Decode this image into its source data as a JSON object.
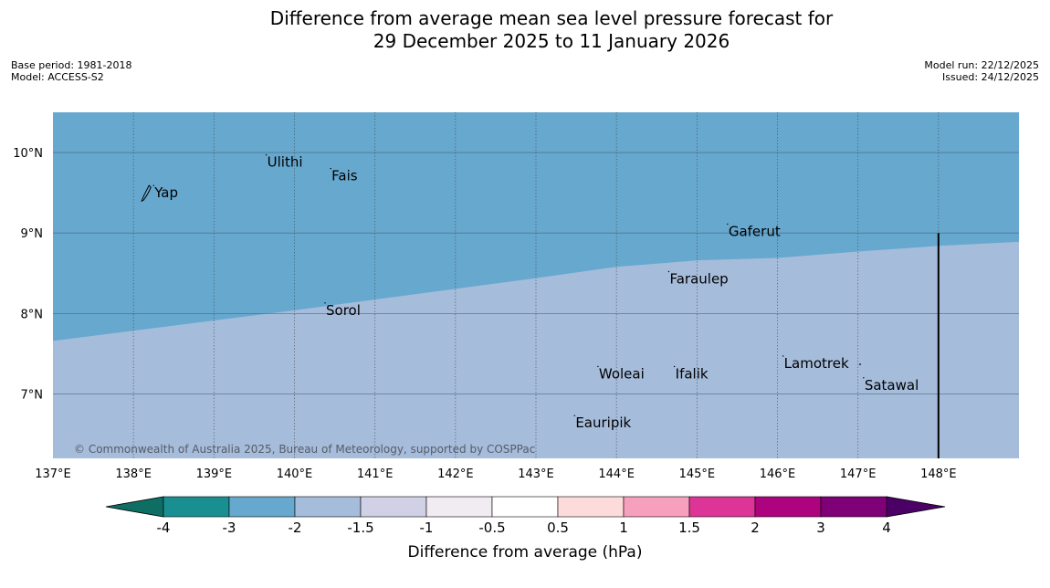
{
  "header": {
    "title_line1": "Difference from average mean sea level pressure forecast for",
    "title_line2": "29 December 2025 to 11 January 2026",
    "base_period": "Base period: 1981-2018",
    "model": "Model: ACCESS-S2",
    "model_run": "Model run: 22/12/2025",
    "issued": "Issued: 24/12/2025"
  },
  "map": {
    "lon_range": [
      137,
      149
    ],
    "lat_range": [
      6.2,
      10.5
    ],
    "lon_ticks": [
      "137°E",
      "138°E",
      "139°E",
      "140°E",
      "141°E",
      "142°E",
      "143°E",
      "144°E",
      "145°E",
      "146°E",
      "147°E",
      "148°E"
    ],
    "lat_ticks": [
      "10°N",
      "9°N",
      "8°N",
      "7°N"
    ],
    "colors": {
      "ocean_minus3_to_minus2": "#67a8cf",
      "ocean_minus2_to_minus1_5": "#a6bcdb",
      "gridline": "#3a3a3a"
    },
    "boundary_line": [
      {
        "lon": 137.0,
        "lat": 7.66
      },
      {
        "lon": 140.0,
        "lat": 8.04
      },
      {
        "lon": 143.0,
        "lat": 8.44
      },
      {
        "lon": 144.0,
        "lat": 8.58
      },
      {
        "lon": 145.0,
        "lat": 8.66
      },
      {
        "lon": 146.0,
        "lat": 8.69
      },
      {
        "lon": 147.0,
        "lat": 8.77
      },
      {
        "lon": 148.0,
        "lat": 8.84
      },
      {
        "lon": 149.0,
        "lat": 8.89
      }
    ],
    "vertical_marker_lon": 148.0,
    "vertical_marker_top_lat": 9.0,
    "places": [
      {
        "name": "Ulithi",
        "lon": 139.65,
        "lat": 9.88
      },
      {
        "name": "Fais",
        "lon": 140.45,
        "lat": 9.71
      },
      {
        "name": "Yap",
        "lon": 138.25,
        "lat": 9.5
      },
      {
        "name": "Gaferut",
        "lon": 145.38,
        "lat": 9.02
      },
      {
        "name": "Faraulep",
        "lon": 144.65,
        "lat": 8.43
      },
      {
        "name": "Sorol",
        "lon": 140.38,
        "lat": 8.04
      },
      {
        "name": "Lamotrek",
        "lon": 146.07,
        "lat": 7.38
      },
      {
        "name": "Woleai",
        "lon": 143.77,
        "lat": 7.25
      },
      {
        "name": "Ifalik",
        "lon": 144.72,
        "lat": 7.25
      },
      {
        "name": "Satawal",
        "lon": 147.07,
        "lat": 7.11
      },
      {
        "name": "Eauripik",
        "lon": 143.48,
        "lat": 6.64
      }
    ],
    "copyright": "© Commonwealth of Australia 2025, Bureau of Meteorology, supported by COSPPac"
  },
  "colorbar": {
    "title": "Difference from average (hPa)",
    "ticks": [
      "-4",
      "-3",
      "-2",
      "-1.5",
      "-1",
      "-0.5",
      "0.5",
      "1",
      "1.5",
      "2",
      "3",
      "4"
    ],
    "colors": [
      "#1a8f91",
      "#67a8cf",
      "#a6bcdb",
      "#d0d0e6",
      "#f0ecf2",
      "#ffffff",
      "#fddbdb",
      "#f6a0be",
      "#dc3597",
      "#ad037f",
      "#7e0178"
    ],
    "extend_low": "#0e6e64",
    "extend_high": "#4b0066"
  }
}
